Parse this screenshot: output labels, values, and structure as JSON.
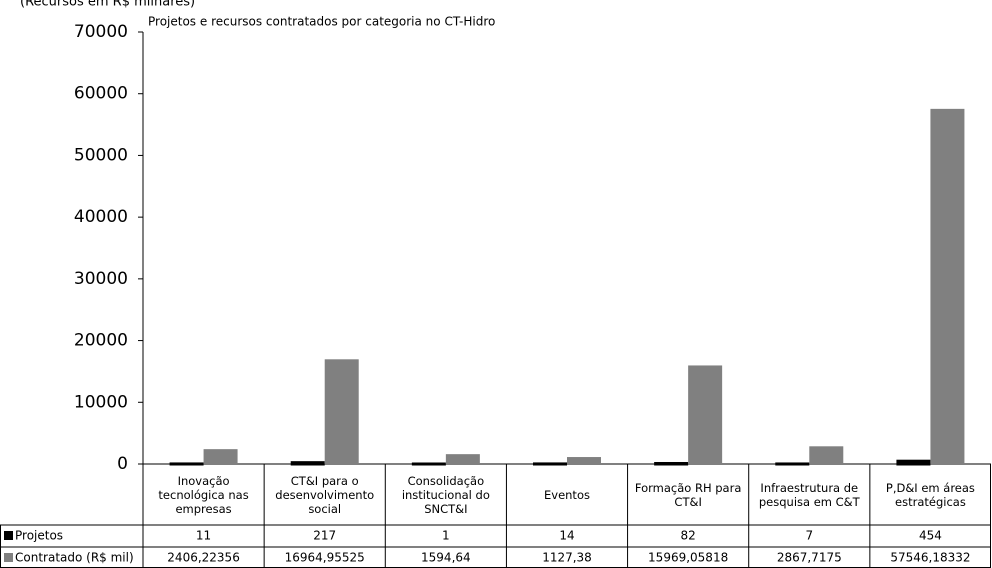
{
  "chart_data": {
    "type": "bar",
    "subtitle": "(Recursos em R$ milhares)",
    "title": "Projetos e recursos contratados por categoria no CT-Hidro",
    "categories": [
      "Inovação tecnológica nas empresas",
      "CT&I para o desenvolvimento social",
      "Consolidação institucional do SNCT&I",
      "Eventos",
      "Formação RH para CT&I",
      "Infraestrutura de pesquisa em C&T",
      "P,D&I em áreas estratégicas"
    ],
    "series": [
      {
        "name": "Projetos",
        "color": "#000000",
        "values": [
          11,
          217,
          1,
          14,
          82,
          7,
          454
        ]
      },
      {
        "name": "Contratado (R$ mil)",
        "color": "#808080",
        "values": [
          2406.22356,
          16964.95525,
          1594.64,
          1127.38,
          15969.05818,
          2867.7175,
          57546.18332
        ],
        "value_labels": [
          "2406,22356",
          "16964,95525",
          "1594,64",
          "1127,38",
          "15969,05818",
          "2867,7175",
          "57546,18332"
        ]
      }
    ],
    "ylim": [
      0,
      70000
    ],
    "yticks": [
      0,
      10000,
      20000,
      30000,
      40000,
      50000,
      60000,
      70000
    ]
  }
}
